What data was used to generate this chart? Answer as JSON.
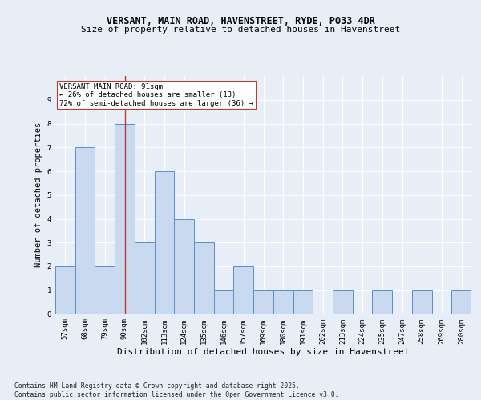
{
  "title1": "VERSANT, MAIN ROAD, HAVENSTREET, RYDE, PO33 4DR",
  "title2": "Size of property relative to detached houses in Havenstreet",
  "xlabel": "Distribution of detached houses by size in Havenstreet",
  "ylabel": "Number of detached properties",
  "categories": [
    "57sqm",
    "68sqm",
    "79sqm",
    "90sqm",
    "102sqm",
    "113sqm",
    "124sqm",
    "135sqm",
    "146sqm",
    "157sqm",
    "169sqm",
    "180sqm",
    "191sqm",
    "202sqm",
    "213sqm",
    "224sqm",
    "235sqm",
    "247sqm",
    "258sqm",
    "269sqm",
    "280sqm"
  ],
  "values": [
    2,
    7,
    2,
    8,
    3,
    6,
    4,
    3,
    1,
    2,
    1,
    1,
    1,
    0,
    1,
    0,
    1,
    0,
    1,
    0,
    1
  ],
  "highlight_index": 3,
  "bar_color": "#c9d9f0",
  "bar_edge_color": "#5b8fc9",
  "highlight_line_color": "#c0392b",
  "annotation_box_color": "#ffffff",
  "annotation_box_edge": "#c0392b",
  "annotation_text": "VERSANT MAIN ROAD: 91sqm\n← 26% of detached houses are smaller (13)\n72% of semi-detached houses are larger (36) →",
  "annotation_fontsize": 6.5,
  "ylim": [
    0,
    10
  ],
  "yticks": [
    0,
    1,
    2,
    3,
    4,
    5,
    6,
    7,
    8,
    9,
    10
  ],
  "footer": "Contains HM Land Registry data © Crown copyright and database right 2025.\nContains public sector information licensed under the Open Government Licence v3.0.",
  "bg_color": "#e8eef8",
  "plot_bg_color": "#e8eef8",
  "title1_fontsize": 8.5,
  "title2_fontsize": 8.0,
  "xlabel_fontsize": 8.0,
  "ylabel_fontsize": 7.5,
  "tick_fontsize": 6.5,
  "footer_fontsize": 5.8
}
